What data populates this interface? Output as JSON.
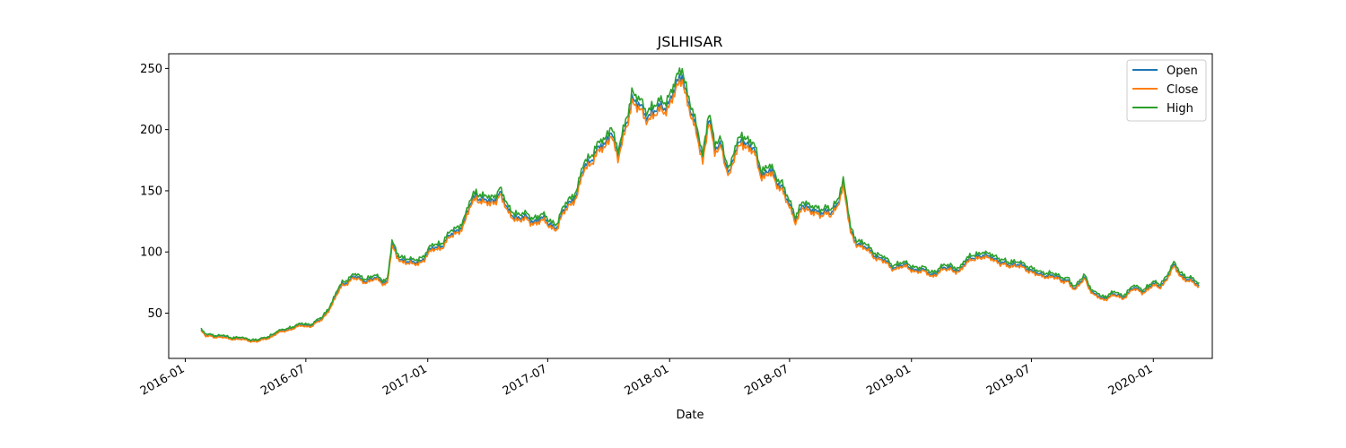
{
  "chart_data": {
    "type": "line",
    "title": "JSLHISAR",
    "xlabel": "Date",
    "ylabel": "",
    "x_scale": "date",
    "xlim": [
      "2015-12-07",
      "2020-03-30"
    ],
    "ylim": [
      13,
      262
    ],
    "x_ticks": [
      "2016-01-01",
      "2016-07-01",
      "2017-01-01",
      "2017-07-01",
      "2018-01-01",
      "2018-07-01",
      "2019-01-01",
      "2019-07-01",
      "2020-01-01"
    ],
    "x_tick_labels": [
      "2016-01",
      "2016-07",
      "2017-01",
      "2017-07",
      "2018-01",
      "2018-07",
      "2019-01",
      "2019-07",
      "2020-01"
    ],
    "y_ticks": [
      50,
      100,
      150,
      200,
      250
    ],
    "grid": false,
    "legend_position": "top-right",
    "series": [
      {
        "name": "Open",
        "color": "#1f77b4",
        "offset": 0.0
      },
      {
        "name": "Close",
        "color": "#ff7f0e",
        "offset": -1.5
      },
      {
        "name": "High",
        "color": "#2ca02c",
        "offset": 2.0
      }
    ],
    "x": [
      "2016-01-25",
      "2016-02-01",
      "2016-02-08",
      "2016-02-15",
      "2016-03-01",
      "2016-03-20",
      "2016-04-05",
      "2016-04-20",
      "2016-05-05",
      "2016-05-20",
      "2016-06-05",
      "2016-06-25",
      "2016-07-10",
      "2016-07-25",
      "2016-08-10",
      "2016-08-25",
      "2016-09-10",
      "2016-10-01",
      "2016-10-15",
      "2016-10-25",
      "2016-11-01",
      "2016-11-08",
      "2016-11-15",
      "2016-11-25",
      "2016-12-10",
      "2016-12-25",
      "2017-01-10",
      "2017-01-25",
      "2017-02-10",
      "2017-02-25",
      "2017-03-05",
      "2017-03-15",
      "2017-03-25",
      "2017-04-05",
      "2017-04-20",
      "2017-05-01",
      "2017-05-10",
      "2017-05-20",
      "2017-06-05",
      "2017-06-20",
      "2017-07-01",
      "2017-07-15",
      "2017-08-01",
      "2017-08-15",
      "2017-08-25",
      "2017-09-10",
      "2017-09-25",
      "2017-10-05",
      "2017-10-15",
      "2017-10-25",
      "2017-11-05",
      "2017-11-15",
      "2017-11-25",
      "2017-12-05",
      "2017-12-15",
      "2017-12-25",
      "2018-01-05",
      "2018-01-10",
      "2018-01-20",
      "2018-02-01",
      "2018-02-10",
      "2018-02-20",
      "2018-03-01",
      "2018-03-10",
      "2018-03-20",
      "2018-04-01",
      "2018-04-10",
      "2018-04-20",
      "2018-05-01",
      "2018-05-10",
      "2018-05-20",
      "2018-06-01",
      "2018-06-10",
      "2018-06-20",
      "2018-07-01",
      "2018-07-10",
      "2018-07-20",
      "2018-08-01",
      "2018-08-10",
      "2018-08-20",
      "2018-09-01",
      "2018-09-10",
      "2018-09-20",
      "2018-10-01",
      "2018-10-10",
      "2018-10-20",
      "2018-11-01",
      "2018-11-15",
      "2018-12-01",
      "2018-12-15",
      "2019-01-01",
      "2019-01-15",
      "2019-02-01",
      "2019-02-15",
      "2019-03-01",
      "2019-03-15",
      "2019-04-01",
      "2019-04-15",
      "2019-05-01",
      "2019-05-15",
      "2019-06-01",
      "2019-06-15",
      "2019-07-01",
      "2019-07-15",
      "2019-08-01",
      "2019-08-15",
      "2019-08-25",
      "2019-09-05",
      "2019-09-20",
      "2019-10-01",
      "2019-10-15",
      "2019-11-01",
      "2019-11-15",
      "2019-12-01",
      "2019-12-15",
      "2020-01-01",
      "2020-01-10",
      "2020-01-20",
      "2020-02-01",
      "2020-02-15",
      "2020-03-01",
      "2020-03-10"
    ],
    "values": [
      36,
      31,
      32,
      31,
      30,
      29,
      28,
      27,
      30,
      34,
      37,
      40,
      40,
      45,
      58,
      74,
      79,
      77,
      78,
      76,
      76,
      105,
      97,
      94,
      90,
      95,
      103,
      107,
      116,
      124,
      136,
      148,
      143,
      139,
      150,
      133,
      131,
      128,
      126,
      127,
      124,
      121,
      140,
      149,
      168,
      182,
      186,
      203,
      176,
      198,
      228,
      218,
      212,
      216,
      215,
      218,
      231,
      232,
      244,
      220,
      197,
      176,
      213,
      181,
      189,
      164,
      179,
      195,
      186,
      180,
      165,
      166,
      158,
      155,
      136,
      126,
      140,
      132,
      135,
      133,
      130,
      140,
      155,
      117,
      109,
      104,
      100,
      95,
      88,
      89,
      87,
      85,
      82,
      85,
      88,
      84,
      97,
      95,
      98,
      90,
      91,
      88,
      86,
      80,
      82,
      76,
      78,
      69,
      80,
      66,
      62,
      65,
      63,
      70,
      68,
      73,
      72,
      78,
      88,
      80,
      75,
      73
    ]
  },
  "legend": {
    "labels": [
      "Open",
      "Close",
      "High"
    ]
  }
}
